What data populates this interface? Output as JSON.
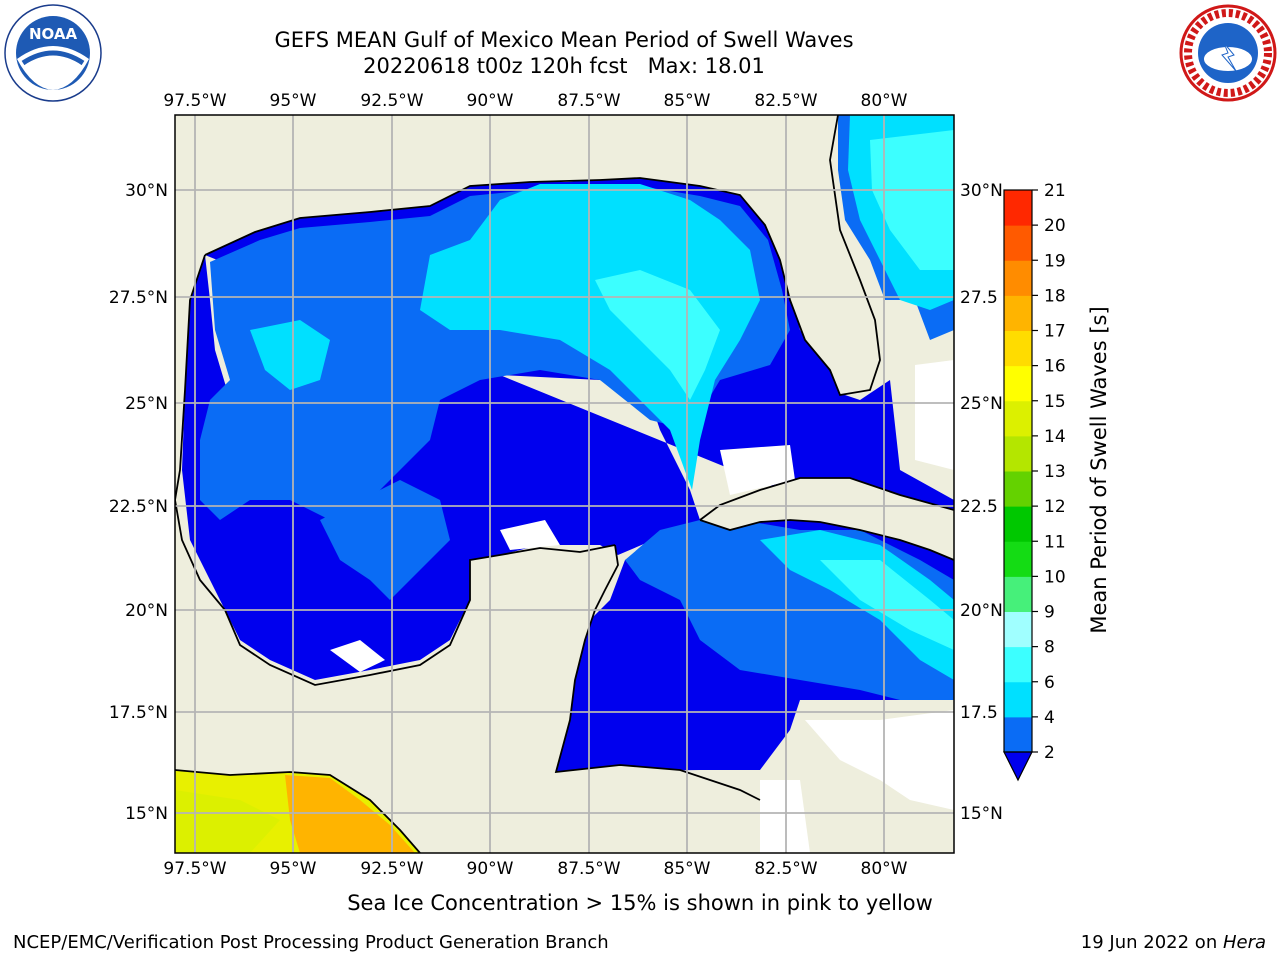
{
  "title": {
    "line1": "GEFS MEAN Gulf of Mexico Mean Period of Swell Waves",
    "line2": "20220618 t00z 120h fcst   Max: 18.01"
  },
  "note": "Sea Ice Concentration > 15% is shown in pink to yellow",
  "footer": {
    "left": "NCEP/EMC/Verification Post Processing Product Generation Branch",
    "date": "19 Jun 2022 on ",
    "machine": "Hera"
  },
  "logos": {
    "noaa": "NOAA",
    "nws": "NATIONAL WEATHER SERVICE"
  },
  "map": {
    "lon_labels": [
      "97.5°W",
      "95°W",
      "92.5°W",
      "90°W",
      "87.5°W",
      "85°W",
      "82.5°W",
      "80°W"
    ],
    "lat_labels_left": [
      "30°N",
      "27.5°N",
      "25°N",
      "22.5°N",
      "20°N",
      "17.5°N",
      "15°N"
    ],
    "lat_labels_right": [
      "30°N",
      "27.5",
      "25°N",
      "22.5",
      "20°N",
      "17.5",
      "15°N"
    ],
    "colors": {
      "land": "#eeeedd",
      "grid": "#b4b4b4",
      "coast": "#000000"
    }
  },
  "colorbar": {
    "label": "Mean Period of Swell Waves [s]",
    "ticks": [
      "2",
      "4",
      "6",
      "8",
      "9",
      "10",
      "11",
      "12",
      "13",
      "14",
      "15",
      "16",
      "17",
      "18",
      "19",
      "20",
      "21"
    ],
    "colors": [
      "#0a6cf5",
      "#00e0ff",
      "#3cffff",
      "#a0ffff",
      "#46f07a",
      "#14dc14",
      "#00c800",
      "#64d200",
      "#b4e600",
      "#dcf000",
      "#ffff00",
      "#ffdc00",
      "#ffb400",
      "#ff8c00",
      "#ff5a00",
      "#ff2800"
    ],
    "extend_color": "#0000ee"
  }
}
